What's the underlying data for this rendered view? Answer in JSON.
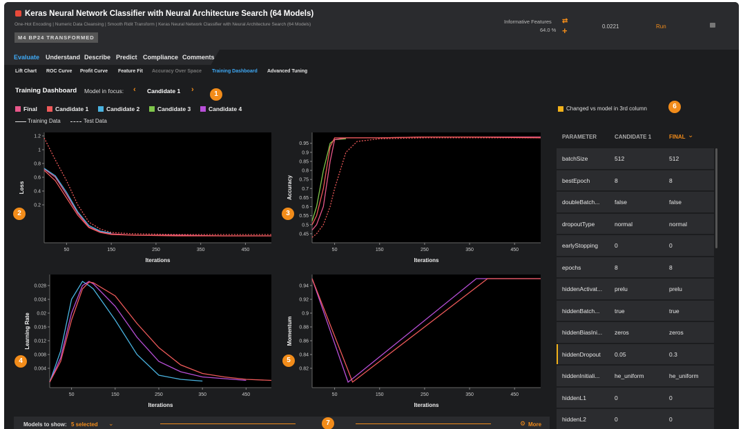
{
  "header": {
    "title": "Keras Neural Network Classifier with Neural Architecture Search (64 Models)",
    "subtitle": "One-Hot Encoding | Numeric Data Cleansing | Smooth Ridit Transform | Keras Neural Network Classifier with Neural Architecture Search (64 Models)",
    "badge": "M4 BP24 TRANSFORMED",
    "informative_label": "Informative Features",
    "informative_value": "64.0 %",
    "score": "0.0221",
    "run": "Run"
  },
  "tabs": [
    "Evaluate",
    "Understand",
    "Describe",
    "Predict",
    "Compliance",
    "Comments"
  ],
  "active_tab": 0,
  "subtabs": [
    "Lift Chart",
    "ROC Curve",
    "Profit Curve",
    "Feature Fit",
    "Accuracy Over Space",
    "Training Dashboard",
    "Advanced Tuning"
  ],
  "active_subtab": 5,
  "disabled_subtab": 4,
  "dashboard": {
    "title": "Training Dashboard",
    "focus_label": "Model in focus:",
    "focus_model": "Candidate 1",
    "legend": [
      {
        "name": "Final",
        "color": "#e8578a"
      },
      {
        "name": "Candidate 1",
        "color": "#ef5a5a"
      },
      {
        "name": "Candidate 2",
        "color": "#4ab3e0"
      },
      {
        "name": "Candidate 3",
        "color": "#7fc64b"
      },
      {
        "name": "Candidate 4",
        "color": "#b84fd8"
      }
    ],
    "line_styles": [
      "Training Data",
      "Test Data"
    ]
  },
  "charts": [
    {
      "type": "line",
      "y_label": "Loss",
      "x_label": "Iterations",
      "x": [
        0,
        25,
        50,
        75,
        100,
        125,
        150,
        200,
        300,
        400,
        508
      ],
      "xlim": [
        0,
        508
      ],
      "xticks": [
        50,
        150,
        250,
        350,
        450
      ],
      "ylim": [
        -0.35,
        1.25
      ],
      "yticks": [
        1.2,
        1,
        0.8,
        0.6,
        0.4,
        0.2
      ],
      "series": [
        {
          "color": "#e8578a",
          "dash": false,
          "values": [
            0.72,
            0.6,
            0.35,
            0.08,
            -0.12,
            -0.19,
            -0.22,
            -0.24,
            -0.24,
            -0.25,
            -0.25
          ]
        },
        {
          "color": "#4ab3e0",
          "dash": false,
          "values": [
            0.73,
            0.62,
            0.38,
            0.1,
            -0.1,
            -0.18,
            -0.21,
            null,
            null,
            null,
            null
          ]
        },
        {
          "color": "#ef5a5a",
          "dash": false,
          "values": [
            0.7,
            0.55,
            0.3,
            0.05,
            -0.13,
            -0.2,
            -0.23,
            -0.24,
            -0.25,
            -0.25,
            -0.25
          ]
        },
        {
          "color": "#ef5a5a",
          "dash": true,
          "values": [
            1.17,
            0.85,
            0.55,
            0.2,
            -0.05,
            -0.15,
            -0.2,
            -0.22,
            -0.23,
            -0.23,
            -0.23
          ]
        }
      ]
    },
    {
      "type": "line",
      "y_label": "Accuracy",
      "x_label": "Iterations",
      "x": [
        0,
        10,
        25,
        40,
        50,
        75,
        100,
        150,
        250,
        350,
        508
      ],
      "xlim": [
        0,
        508
      ],
      "xticks": [
        50,
        150,
        250,
        350,
        450
      ],
      "ylim": [
        0.4,
        1.01
      ],
      "yticks": [
        0.95,
        0.9,
        0.85,
        0.8,
        0.75,
        0.7,
        0.65,
        0.6,
        0.55,
        0.5,
        0.45
      ],
      "series": [
        {
          "color": "#7fc64b",
          "dash": false,
          "values": [
            0.52,
            0.6,
            0.8,
            0.95,
            0.97,
            0.975,
            null,
            null,
            null,
            null,
            null
          ]
        },
        {
          "color": "#e8578a",
          "dash": false,
          "values": [
            0.47,
            0.5,
            0.6,
            0.85,
            0.97,
            0.98,
            0.98,
            0.98,
            0.985,
            0.985,
            0.985
          ]
        },
        {
          "color": "#ef5a5a",
          "dash": false,
          "values": [
            0.5,
            0.55,
            0.7,
            0.93,
            0.98,
            0.98,
            0.98,
            0.98,
            0.985,
            0.985,
            0.98
          ]
        },
        {
          "color": "#ef5a5a",
          "dash": true,
          "values": [
            0.43,
            0.45,
            0.5,
            0.6,
            0.7,
            0.9,
            0.96,
            0.975,
            0.98,
            0.98,
            0.98
          ]
        }
      ]
    },
    {
      "type": "line",
      "y_label": "Learning Rate",
      "x_label": "Iterations",
      "x": [
        0,
        25,
        50,
        75,
        90,
        100,
        150,
        200,
        250,
        300,
        350,
        400,
        450,
        508
      ],
      "xlim": [
        0,
        508
      ],
      "xticks": [
        50,
        150,
        250,
        350,
        450
      ],
      "ylim": [
        -0.0016,
        0.0312
      ],
      "yticks": [
        0.028,
        0.024,
        0.02,
        0.016,
        0.012,
        0.008,
        0.004
      ],
      "series": [
        {
          "color": "#4ab3e0",
          "dash": false,
          "values": [
            0.0,
            0.009,
            0.024,
            0.0292,
            0.028,
            0.027,
            0.018,
            0.008,
            0.002,
            0.0008,
            0.0003,
            null,
            null,
            null
          ]
        },
        {
          "color": "#b84fd8",
          "dash": false,
          "values": [
            0.0,
            0.007,
            0.02,
            0.028,
            0.0292,
            0.0285,
            0.022,
            0.013,
            0.006,
            0.003,
            0.0015,
            0.001,
            0.0005,
            null
          ]
        },
        {
          "color": "#ef5a5a",
          "dash": false,
          "values": [
            0.0,
            0.006,
            0.018,
            0.027,
            0.029,
            0.0288,
            0.025,
            0.017,
            0.01,
            0.005,
            0.0025,
            0.0015,
            0.0008,
            0.0005
          ]
        }
      ]
    },
    {
      "type": "line",
      "y_label": "Momentum",
      "x_label": "Iterations",
      "x": [
        0,
        80,
        90,
        365,
        390,
        508
      ],
      "xlim": [
        0,
        508
      ],
      "xticks": [
        50,
        150,
        250,
        350,
        450
      ],
      "ylim": [
        0.792,
        0.956
      ],
      "yticks": [
        0.94,
        0.92,
        0.9,
        0.88,
        0.86,
        0.84,
        0.82
      ],
      "series": [
        {
          "color": "#b84fd8",
          "dash": false,
          "values": [
            0.95,
            0.8,
            0.805,
            0.95,
            0.95,
            0.95
          ]
        },
        {
          "color": "#ef5a5a",
          "dash": false,
          "values": [
            0.95,
            0.817,
            0.8,
            0.9375,
            0.95,
            0.95
          ]
        }
      ]
    }
  ],
  "table": {
    "note": "Changed vs model in 3rd column",
    "columns": [
      "PARAMETER",
      "CANDIDATE 1",
      "FINAL"
    ],
    "rows": [
      [
        "batchSize",
        "512",
        "512"
      ],
      [
        "bestEpoch",
        "8",
        "8"
      ],
      [
        "doubleBatch...",
        "false",
        "false"
      ],
      [
        "dropoutType",
        "normal",
        "normal"
      ],
      [
        "earlyStopping",
        "0",
        "0"
      ],
      [
        "epochs",
        "8",
        "8"
      ],
      [
        "hiddenActivat...",
        "prelu",
        "prelu"
      ],
      [
        "hiddenBatch...",
        "true",
        "true"
      ],
      [
        "hiddenBiasIni...",
        "zeros",
        "zeros"
      ],
      [
        "hiddenDropout",
        "0.05",
        "0.3"
      ],
      [
        "hiddenInitiali...",
        "he_uniform",
        "he_uniform"
      ],
      [
        "hiddenL1",
        "0",
        "0"
      ],
      [
        "hiddenL2",
        "0",
        "0"
      ]
    ]
  },
  "footer": {
    "label": "Models to show:",
    "selected": "5 selected",
    "more": "More"
  },
  "markers": [
    "1",
    "2",
    "3",
    "4",
    "5",
    "6",
    "7"
  ]
}
